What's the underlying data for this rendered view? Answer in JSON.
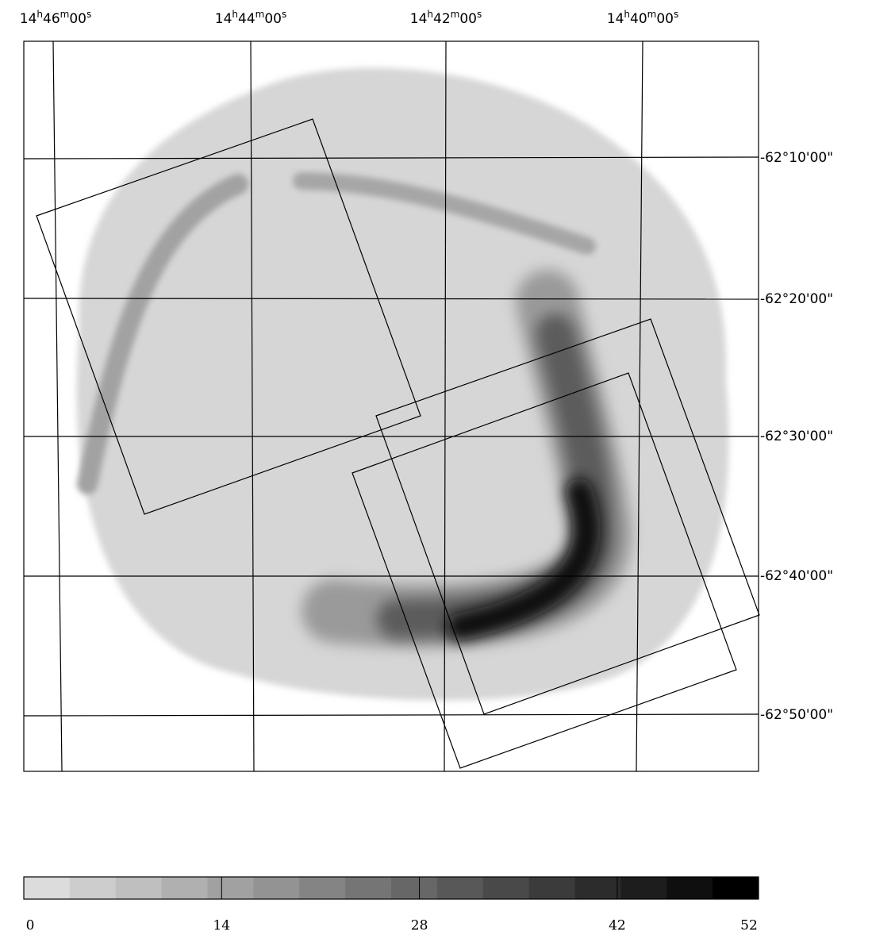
{
  "map": {
    "ra_labels": [
      "14h46m00s",
      "14h44m00s",
      "14h42m00s",
      "14h40m00s"
    ],
    "dec_labels": [
      "-62°10'00\"",
      "-62°20'00\"",
      "-62°30'00\"",
      "-62°40'00\"",
      "-62°50'00\""
    ],
    "colorbar": {
      "lim": [
        0,
        52
      ],
      "ticks": [
        0,
        14,
        28,
        42,
        52
      ]
    }
  }
}
